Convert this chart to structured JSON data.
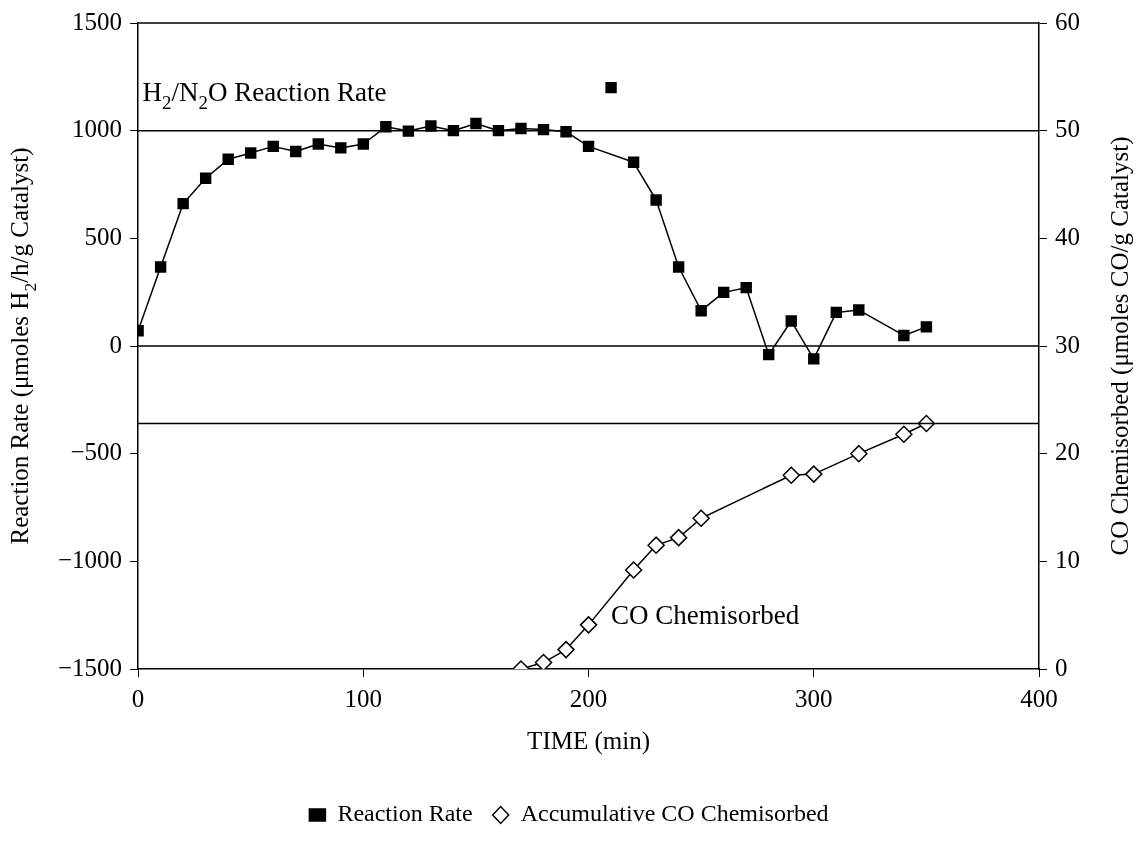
{
  "chart_data": {
    "type": "line",
    "xlabel": "TIME (min)",
    "ylabel": "Reaction Rate (μmoles H$_{2}$/h/g Catalyst)",
    "y2label": "CO Chemisorbed (μmoles CO/g Catalyst)",
    "xlim": [
      0,
      400
    ],
    "xticks": [
      0,
      100,
      200,
      300,
      400
    ],
    "ylim": [
      -1500,
      1500
    ],
    "yticks": [
      -1500,
      -1000,
      -500,
      0,
      500,
      1000,
      1500
    ],
    "y2lim": [
      0,
      60
    ],
    "y2ticks": [
      0,
      10,
      20,
      30,
      40,
      50,
      60
    ],
    "grid": false,
    "legend": "bottom",
    "line_style": "solid",
    "series": [
      {
        "name": "Reaction Rate",
        "color": "#000000",
        "marker": "square",
        "x": [
          0,
          10,
          20,
          30,
          40,
          50,
          60,
          70,
          80,
          90,
          100,
          110,
          120,
          130,
          140,
          150,
          160,
          170,
          180,
          190,
          200,
          220,
          230,
          240,
          250,
          260,
          270,
          280,
          290,
          300,
          310,
          320,
          340,
          350
        ],
        "values": [
          71,
          367,
          661,
          779,
          867,
          896,
          927,
          903,
          938,
          920,
          938,
          1018,
          998,
          1022,
          1000,
          1033,
          1000,
          1010,
          1005,
          995,
          927,
          853,
          678,
          367,
          164,
          249,
          271,
          -40,
          116,
          -60,
          156,
          167,
          49,
          89
        ]
      },
      {
        "type": "scatter",
        "color": "#000000",
        "marker": "square",
        "x": [
          210
        ],
        "values": [
          1200
        ]
      },
      {
        "name": "Accumulative CO Chemisorbed",
        "color": "#000000",
        "marker": "diamond",
        "axis": "y2",
        "x": [
          170,
          180,
          190,
          200,
          220,
          230,
          240,
          250,
          290,
          300,
          320,
          340,
          350
        ],
        "values": [
          0,
          0.6,
          1.8,
          4.1,
          9.2,
          11.5,
          12.2,
          14,
          18,
          18.1,
          20,
          21.8,
          22.8
        ]
      }
    ],
    "ref_lines": [
      {
        "axis": "y",
        "value": 1000
      },
      {
        "axis": "y",
        "value": 0
      },
      {
        "axis": "y2",
        "value": 22.8
      }
    ],
    "annotations": [
      "H$_{2}$/N$_{2}$O Reaction Rate",
      "CO Chemisorbed"
    ]
  }
}
